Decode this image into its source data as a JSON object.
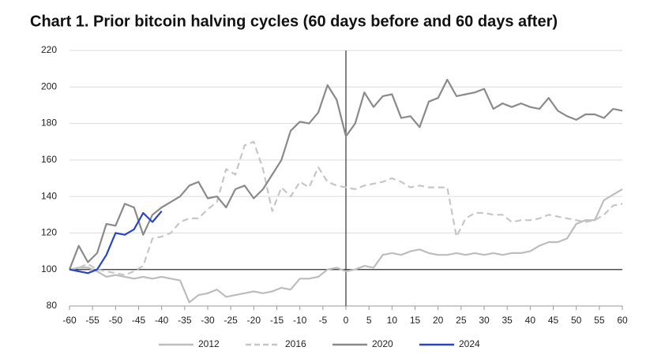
{
  "chart_data": {
    "type": "line",
    "title": "Chart 1. Prior bitcoin halving cycles (60 days before and 60 days after)",
    "x": [
      -60,
      -58,
      -56,
      -54,
      -52,
      -50,
      -48,
      -46,
      -44,
      -42,
      -40,
      -38,
      -36,
      -34,
      -32,
      -30,
      -28,
      -26,
      -24,
      -22,
      -20,
      -18,
      -16,
      -14,
      -12,
      -10,
      -8,
      -6,
      -4,
      -2,
      0,
      2,
      4,
      6,
      8,
      10,
      12,
      14,
      16,
      18,
      20,
      22,
      24,
      26,
      28,
      30,
      32,
      34,
      36,
      38,
      40,
      42,
      44,
      46,
      48,
      50,
      52,
      54,
      56,
      58,
      60
    ],
    "series": [
      {
        "name": "2012",
        "color": "#bdbdbd",
        "dashed": false,
        "values": [
          100,
          101,
          101,
          99,
          96,
          97,
          96,
          95,
          96,
          95,
          96,
          95,
          94,
          82,
          86,
          87,
          89,
          85,
          86,
          87,
          88,
          87,
          88,
          90,
          89,
          95,
          95,
          96,
          100,
          101,
          99,
          100,
          102,
          101,
          108,
          109,
          108,
          110,
          111,
          109,
          108,
          108,
          109,
          108,
          109,
          108,
          109,
          108,
          109,
          109,
          110,
          113,
          115,
          115,
          117,
          125,
          127,
          127,
          138,
          141,
          144
        ]
      },
      {
        "name": "2016",
        "color": "#c6c6c6",
        "dashed": true,
        "values": [
          100,
          101,
          103,
          100,
          99,
          98,
          97,
          99,
          102,
          117,
          118,
          120,
          126,
          128,
          128,
          133,
          137,
          155,
          152,
          168,
          170,
          155,
          132,
          145,
          140,
          148,
          145,
          156,
          148,
          146,
          145,
          144,
          146,
          147,
          148,
          150,
          148,
          145,
          146,
          145,
          145,
          145,
          118,
          128,
          131,
          131,
          130,
          130,
          126,
          127,
          127,
          128,
          130,
          129,
          128,
          127,
          126,
          127,
          130,
          135,
          136
        ]
      },
      {
        "name": "2020",
        "color": "#8a8a8a",
        "dashed": false,
        "values": [
          100,
          113,
          104,
          109,
          125,
          124,
          136,
          134,
          119,
          130,
          134,
          137,
          140,
          146,
          148,
          139,
          140,
          134,
          144,
          146,
          139,
          144,
          152,
          160,
          176,
          181,
          180,
          186,
          201,
          193,
          173,
          180,
          197,
          189,
          195,
          196,
          183,
          184,
          178,
          192,
          194,
          204,
          195,
          196,
          197,
          199,
          188,
          191,
          189,
          191,
          189,
          188,
          194,
          187,
          184,
          182,
          185,
          185,
          183,
          188,
          187
        ]
      },
      {
        "name": "2024",
        "color": "#2a45c2",
        "dashed": false,
        "values": [
          100,
          99,
          98,
          100,
          108,
          120,
          119,
          122,
          131,
          126,
          132,
          null,
          null,
          null,
          null,
          null,
          null,
          null,
          null,
          null,
          null,
          null,
          null,
          null,
          null,
          null,
          null,
          null,
          null,
          null,
          null,
          null,
          null,
          null,
          null,
          null,
          null,
          null,
          null,
          null,
          null,
          null,
          null,
          null,
          null,
          null,
          null,
          null,
          null,
          null,
          null,
          null,
          null,
          null,
          null,
          null,
          null,
          null,
          null,
          null,
          null
        ]
      }
    ],
    "xlim": [
      -60,
      60
    ],
    "xticks": [
      -60,
      -55,
      -50,
      -45,
      -40,
      -35,
      -30,
      -25,
      -20,
      -15,
      -10,
      -5,
      0,
      5,
      10,
      15,
      20,
      25,
      30,
      35,
      40,
      45,
      50,
      55,
      60
    ],
    "ylim": [
      80,
      220
    ],
    "yticks": [
      80,
      100,
      120,
      140,
      160,
      180,
      200,
      220
    ],
    "grid": true,
    "reference_lines": {
      "x": 0,
      "y": 100
    },
    "legend": "bottom"
  }
}
